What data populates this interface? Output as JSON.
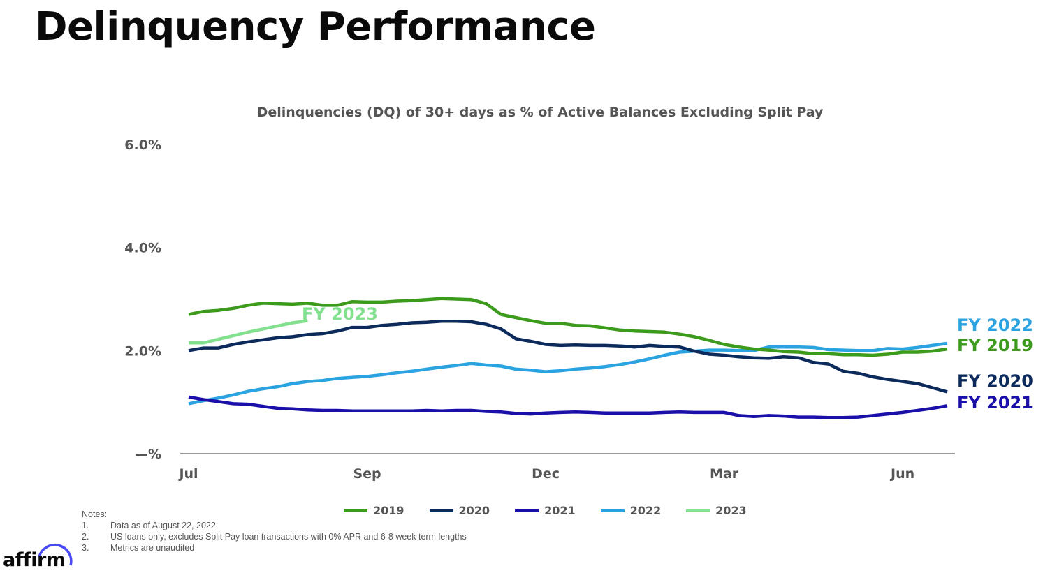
{
  "page": {
    "title": "Delinquency Performance"
  },
  "chart_data": {
    "type": "line",
    "title": "Delinquencies (DQ) of 30+ days as % of Active Balances Excluding Split Pay",
    "xlabel": "",
    "ylabel": "",
    "ylim": [
      0,
      6
    ],
    "yticks": [
      {
        "value": 6,
        "label": "6.0%"
      },
      {
        "value": 4,
        "label": "4.0%"
      },
      {
        "value": 2,
        "label": "2.0%"
      },
      {
        "value": 0,
        "label": "—%"
      }
    ],
    "x_count": 52,
    "xticks": [
      {
        "index": 0,
        "label": "Jul"
      },
      {
        "index": 12,
        "label": "Sep"
      },
      {
        "index": 24,
        "label": "Dec"
      },
      {
        "index": 36,
        "label": "Mar"
      },
      {
        "index": 48,
        "label": "Jun"
      }
    ],
    "grid": false,
    "legend_position": "bottom",
    "series": [
      {
        "name": "2019",
        "end_label": "FY 2019",
        "color": "#3c9a1c",
        "values": [
          2.7,
          2.76,
          2.78,
          2.82,
          2.88,
          2.92,
          2.91,
          2.9,
          2.92,
          2.88,
          2.88,
          2.95,
          2.94,
          2.94,
          2.96,
          2.97,
          2.99,
          3.01,
          3.0,
          2.99,
          2.91,
          2.7,
          2.64,
          2.58,
          2.53,
          2.53,
          2.49,
          2.48,
          2.44,
          2.4,
          2.38,
          2.37,
          2.36,
          2.32,
          2.27,
          2.2,
          2.12,
          2.07,
          2.03,
          2.01,
          1.98,
          1.97,
          1.94,
          1.94,
          1.92,
          1.92,
          1.91,
          1.93,
          1.97,
          1.97,
          1.99,
          2.03
        ]
      },
      {
        "name": "2020",
        "end_label": "FY 2020",
        "color": "#0c2a5c",
        "values": [
          2.0,
          2.05,
          2.05,
          2.12,
          2.17,
          2.21,
          2.25,
          2.27,
          2.31,
          2.33,
          2.38,
          2.45,
          2.45,
          2.49,
          2.51,
          2.54,
          2.55,
          2.57,
          2.57,
          2.56,
          2.51,
          2.42,
          2.23,
          2.18,
          2.12,
          2.1,
          2.11,
          2.1,
          2.1,
          2.09,
          2.07,
          2.1,
          2.08,
          2.07,
          1.99,
          1.93,
          1.91,
          1.88,
          1.86,
          1.85,
          1.88,
          1.86,
          1.77,
          1.74,
          1.6,
          1.56,
          1.49,
          1.44,
          1.4,
          1.36,
          1.28,
          1.2
        ]
      },
      {
        "name": "2021",
        "end_label": "FY 2021",
        "color": "#1a0fa8",
        "values": [
          1.1,
          1.05,
          1.01,
          0.97,
          0.96,
          0.92,
          0.88,
          0.87,
          0.85,
          0.84,
          0.84,
          0.83,
          0.83,
          0.83,
          0.83,
          0.83,
          0.84,
          0.83,
          0.84,
          0.84,
          0.82,
          0.81,
          0.78,
          0.77,
          0.79,
          0.8,
          0.81,
          0.8,
          0.79,
          0.79,
          0.79,
          0.79,
          0.8,
          0.81,
          0.8,
          0.8,
          0.8,
          0.74,
          0.72,
          0.74,
          0.73,
          0.71,
          0.71,
          0.7,
          0.7,
          0.71,
          0.74,
          0.77,
          0.8,
          0.84,
          0.88,
          0.93
        ]
      },
      {
        "name": "2022",
        "end_label": "FY 2022",
        "color": "#2aa3e0",
        "values": [
          0.97,
          1.03,
          1.08,
          1.14,
          1.21,
          1.26,
          1.3,
          1.36,
          1.4,
          1.42,
          1.46,
          1.48,
          1.5,
          1.53,
          1.57,
          1.6,
          1.64,
          1.68,
          1.71,
          1.75,
          1.72,
          1.7,
          1.64,
          1.62,
          1.59,
          1.61,
          1.64,
          1.66,
          1.69,
          1.73,
          1.78,
          1.84,
          1.91,
          1.97,
          1.99,
          2.01,
          2.01,
          2.0,
          2.0,
          2.07,
          2.07,
          2.07,
          2.06,
          2.02,
          2.01,
          2.0,
          2.0,
          2.04,
          2.03,
          2.06,
          2.1,
          2.14
        ]
      },
      {
        "name": "2023",
        "end_label": "FY 2023",
        "color": "#82e08f",
        "values": [
          2.15,
          2.15,
          2.22,
          2.29,
          2.36,
          2.42,
          2.48,
          2.54,
          2.58
        ]
      }
    ]
  },
  "notes": {
    "heading": "Notes:",
    "items": [
      {
        "num": "1.",
        "text": "Data as of August 22, 2022"
      },
      {
        "num": "2.",
        "text": "US loans only, excludes Split Pay loan transactions with 0% APR and 6-8 week term lengths"
      },
      {
        "num": "3.",
        "text": "Metrics are unaudited"
      }
    ]
  },
  "logo": {
    "text": "affirm",
    "arc_color": "#4a4af4"
  }
}
